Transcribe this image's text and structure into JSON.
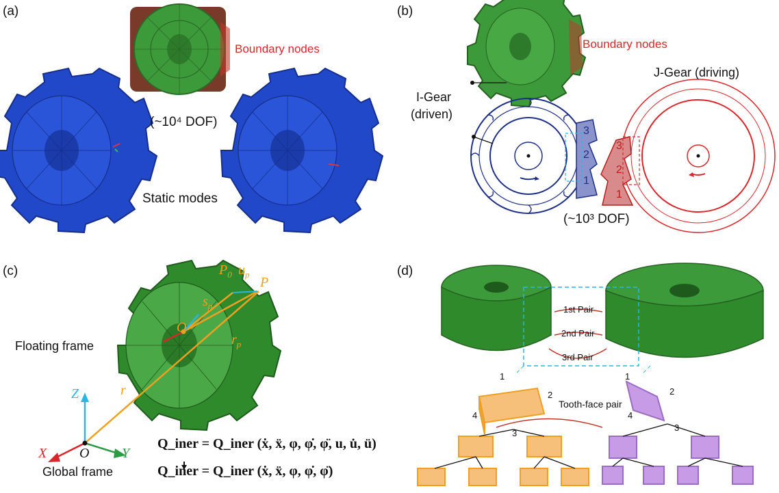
{
  "panels": {
    "a": {
      "tag": "(a)",
      "boundary_label": "Boundary nodes",
      "dof_label": "(~10⁴ DOF)",
      "modes_label": "Static modes"
    },
    "b": {
      "tag": "(b)",
      "boundary_label": "Boundary nodes",
      "jgear_label": "J-Gear (driving)",
      "igear_label_1": "I-Gear",
      "igear_label_2": "(driven)",
      "dof_label": "(~10³ DOF)",
      "tooth_numbers_blue": [
        "3",
        "2",
        "1"
      ],
      "tooth_numbers_red": [
        "3",
        "2",
        "1"
      ]
    },
    "c": {
      "tag": "(c)",
      "floating_label": "Floating frame",
      "global_label": "Global frame",
      "axis_x": "X",
      "axis_y": "Y",
      "axis_z": "Z",
      "origin_global": "O",
      "origin_float": "O",
      "vec_r": "r",
      "vec_rp": "r",
      "vec_rp_sub": "p",
      "vec_s": "s",
      "vec_s_sub": "p",
      "pt_P0": "P",
      "pt_P0_sub": "0",
      "vec_u": "u",
      "vec_u_sub": "p",
      "pt_P": "P",
      "eq1": "Q_iner = Q_iner (ẋ, ẍ, φ, φ̇, φ̈, u, u̇, ü)",
      "eq2": "Q_iner = Q_iner (ẋ, ẍ, φ, φ̇, φ̈)"
    },
    "d": {
      "tag": "(d)",
      "pair1": "1st Pair",
      "pair2": "2nd Pair",
      "pair3": "3rd Pair",
      "tooth_face_pair": "Tooth-face pair",
      "corner_numbers_left": [
        "1",
        "2",
        "3",
        "4"
      ],
      "corner_numbers_right": [
        "1",
        "2",
        "3",
        "4"
      ]
    }
  },
  "colors": {
    "gear_green": "#3d9a3a",
    "gear_blue": "#2148c9",
    "red": "#d9262a",
    "navy": "#1d2f86",
    "orange": "#f0a020",
    "purple": "#9b6cc4",
    "cyan": "#29b6e6"
  }
}
